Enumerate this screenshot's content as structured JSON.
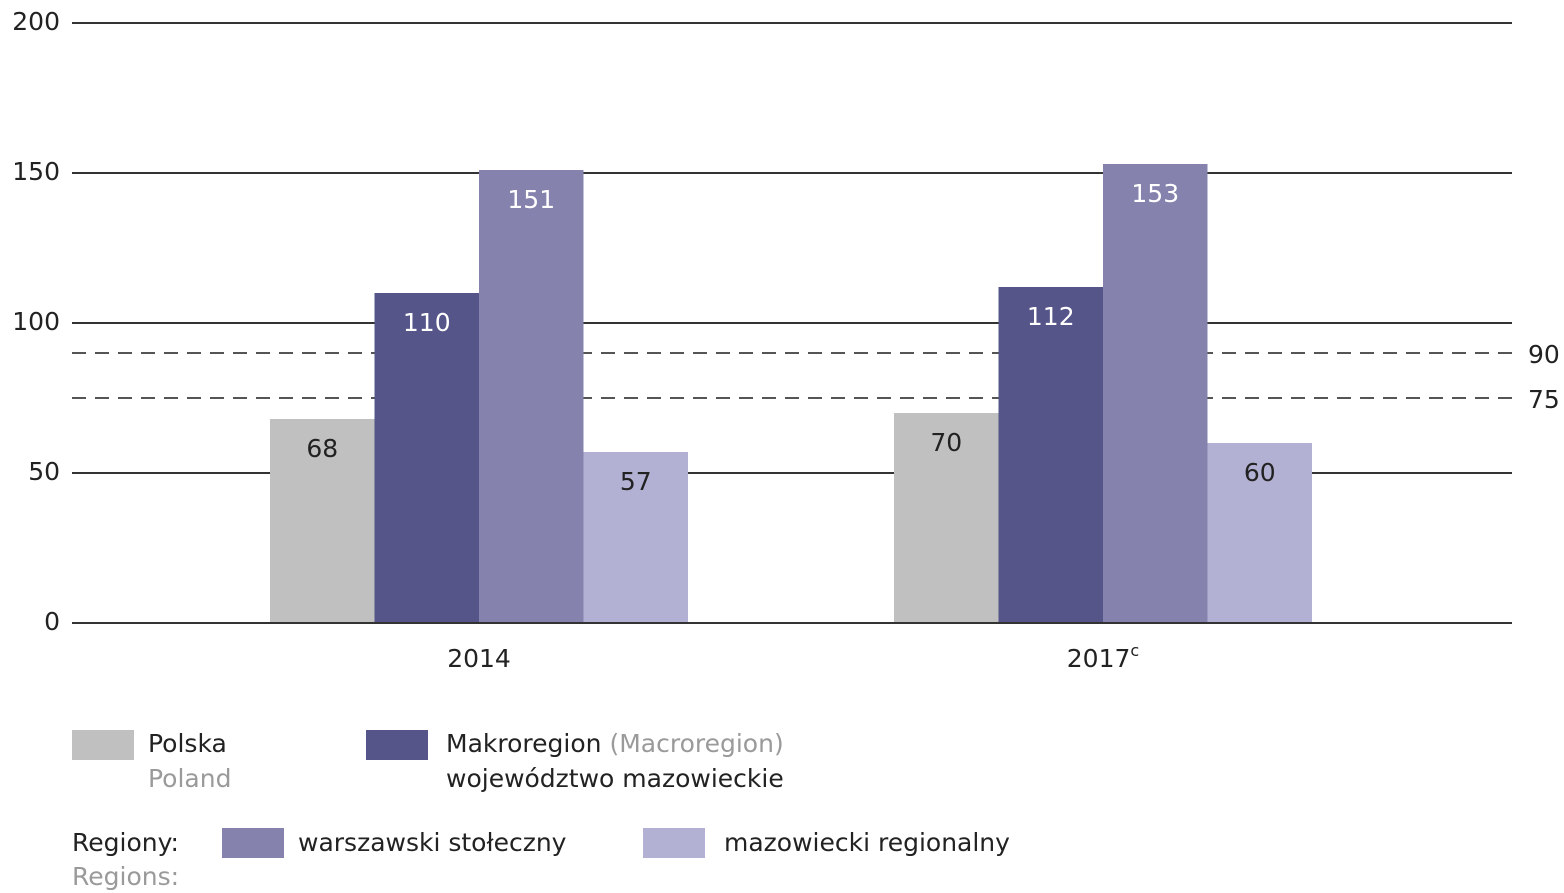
{
  "chart_data": {
    "type": "bar",
    "categories": [
      "2014",
      "2017"
    ],
    "category_notes": [
      null,
      "c"
    ],
    "series": [
      {
        "name": "Polska",
        "name_en": "Poland",
        "color": "#c0c0c0",
        "label_color": "#222222",
        "values": [
          68,
          70
        ]
      },
      {
        "name": "województwo mazowieckie",
        "group": "Makroregion",
        "group_en": "(Macroregion)",
        "color": "#56558a",
        "label_color": "#ffffff",
        "values": [
          110,
          112
        ]
      },
      {
        "name": "warszawski stołeczny",
        "color": "#8583ae",
        "label_color": "#ffffff",
        "values": [
          151,
          153
        ]
      },
      {
        "name": "mazowiecki regionalny",
        "color": "#b3b1d3",
        "label_color": "#222222",
        "values": [
          57,
          60
        ]
      }
    ],
    "regions_label": "Regiony:",
    "regions_label_en": "Regions:",
    "ylim": [
      0,
      200
    ],
    "yticks": [
      0,
      50,
      100,
      150,
      200
    ],
    "grid": true,
    "reference_lines": [
      90,
      75
    ]
  }
}
